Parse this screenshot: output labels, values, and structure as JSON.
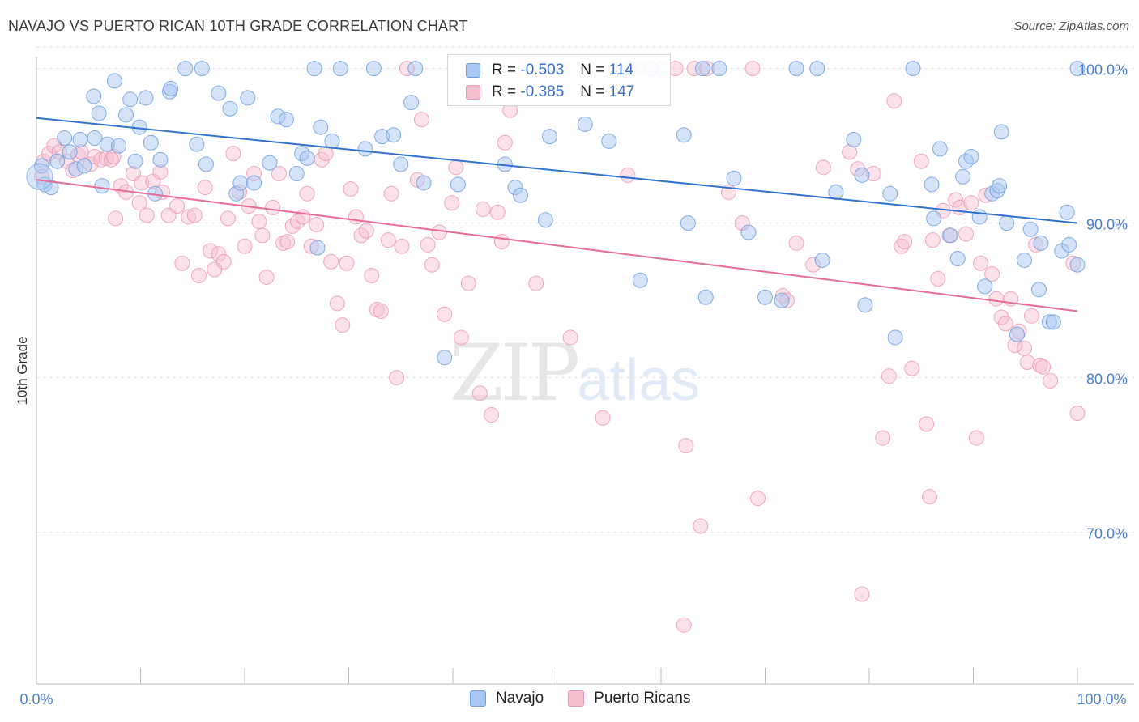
{
  "title": "NAVAJO VS PUERTO RICAN 10TH GRADE CORRELATION CHART",
  "source": "Source: ZipAtlas.com",
  "watermark": {
    "zip": "ZIP",
    "atlas": "atlas"
  },
  "colors": {
    "navajo_fill": "#a9c7f2",
    "navajo_stroke": "#6f9de0",
    "navajo_line": "#2f72d0",
    "pr_fill": "#f6bfd0",
    "pr_stroke": "#ee93b0",
    "pr_line": "#e86b96",
    "tick_label": "#4a7fd0",
    "grid": "#e2e2e2"
  },
  "legend": {
    "rows": [
      {
        "r_label": "R =",
        "r_value": "-0.503",
        "n_label": "N =",
        "n_value": "114"
      },
      {
        "r_label": "R =",
        "r_value": "-0.385",
        "n_label": "N =",
        "n_value": "147"
      }
    ],
    "bottom": [
      "Navajo",
      "Puerto Ricans"
    ]
  },
  "chart_data": {
    "type": "scatter",
    "xlabel": "",
    "ylabel": "10th Grade",
    "xlim": [
      0,
      100
    ],
    "ylim": [
      61.5,
      101.5
    ],
    "x_tick_labels": [
      "0.0%",
      "100.0%"
    ],
    "y_ticks": [
      70,
      80,
      90,
      100
    ],
    "y_tick_labels": [
      "70.0%",
      "80.0%",
      "90.0%",
      "100.0%"
    ],
    "grid": true,
    "series": [
      {
        "name": "Navajo",
        "trend": {
          "x": [
            0,
            100
          ],
          "y": [
            96.8,
            90.0
          ]
        },
        "points": [
          [
            0.5,
            93.7
          ],
          [
            0.8,
            92.5
          ],
          [
            1.4,
            92.3
          ],
          [
            2.0,
            94.0
          ],
          [
            2.7,
            95.5
          ],
          [
            3.2,
            94.6
          ],
          [
            3.8,
            93.5
          ],
          [
            4.2,
            95.4
          ],
          [
            4.6,
            93.7
          ],
          [
            5.5,
            98.2
          ],
          [
            5.6,
            95.5
          ],
          [
            6.0,
            97.1
          ],
          [
            6.3,
            92.4
          ],
          [
            6.8,
            95.1
          ],
          [
            7.5,
            99.2
          ],
          [
            7.9,
            95.0
          ],
          [
            8.6,
            97.0
          ],
          [
            9.0,
            98.0
          ],
          [
            9.5,
            94.0
          ],
          [
            9.9,
            96.2
          ],
          [
            10.5,
            98.1
          ],
          [
            11.0,
            95.2
          ],
          [
            11.4,
            91.9
          ],
          [
            11.9,
            94.1
          ],
          [
            12.8,
            98.5
          ],
          [
            12.9,
            98.7
          ],
          [
            14.3,
            100.0
          ],
          [
            15.4,
            95.1
          ],
          [
            15.9,
            100.0
          ],
          [
            16.3,
            93.8
          ],
          [
            17.5,
            98.4
          ],
          [
            18.6,
            97.4
          ],
          [
            19.2,
            91.9
          ],
          [
            19.6,
            92.6
          ],
          [
            20.3,
            98.1
          ],
          [
            20.9,
            92.6
          ],
          [
            22.4,
            93.9
          ],
          [
            23.2,
            96.9
          ],
          [
            24.0,
            96.7
          ],
          [
            25.0,
            93.2
          ],
          [
            25.5,
            94.5
          ],
          [
            26.0,
            94.2
          ],
          [
            26.7,
            100.0
          ],
          [
            27.0,
            88.4
          ],
          [
            27.3,
            96.2
          ],
          [
            28.4,
            95.3
          ],
          [
            29.2,
            100.0
          ],
          [
            31.6,
            94.8
          ],
          [
            32.4,
            100.0
          ],
          [
            33.2,
            95.6
          ],
          [
            34.3,
            95.7
          ],
          [
            35.0,
            93.8
          ],
          [
            36.0,
            97.8
          ],
          [
            36.4,
            100.0
          ],
          [
            37.2,
            92.6
          ],
          [
            39.2,
            81.3
          ],
          [
            40.5,
            92.5
          ],
          [
            45.0,
            93.8
          ],
          [
            46.0,
            92.3
          ],
          [
            46.5,
            91.8
          ],
          [
            48.9,
            90.2
          ],
          [
            49.3,
            95.6
          ],
          [
            52.7,
            96.4
          ],
          [
            55.0,
            95.3
          ],
          [
            57.0,
            100.0
          ],
          [
            58.0,
            86.3
          ],
          [
            60.0,
            100.0
          ],
          [
            62.2,
            95.7
          ],
          [
            62.6,
            90.0
          ],
          [
            64.3,
            85.2
          ],
          [
            65.6,
            100.0
          ],
          [
            67.0,
            92.9
          ],
          [
            68.4,
            89.4
          ],
          [
            70.0,
            85.2
          ],
          [
            71.6,
            85.0
          ],
          [
            75.5,
            87.6
          ],
          [
            76.8,
            92.0
          ],
          [
            78.5,
            95.4
          ],
          [
            79.3,
            93.1
          ],
          [
            79.6,
            84.7
          ],
          [
            82.0,
            91.9
          ],
          [
            82.5,
            82.6
          ],
          [
            86.0,
            92.5
          ],
          [
            86.2,
            90.3
          ],
          [
            86.8,
            94.8
          ],
          [
            87.8,
            89.2
          ],
          [
            88.5,
            87.7
          ],
          [
            89.0,
            93.0
          ],
          [
            89.3,
            94.0
          ],
          [
            89.8,
            94.3
          ],
          [
            90.6,
            90.4
          ],
          [
            91.1,
            85.9
          ],
          [
            91.8,
            91.9
          ],
          [
            92.3,
            92.1
          ],
          [
            92.5,
            92.4
          ],
          [
            92.7,
            95.9
          ],
          [
            93.2,
            90.0
          ],
          [
            94.2,
            82.8
          ],
          [
            94.9,
            87.6
          ],
          [
            95.5,
            89.6
          ],
          [
            96.3,
            85.7
          ],
          [
            96.5,
            88.7
          ],
          [
            97.3,
            83.6
          ],
          [
            97.7,
            83.6
          ],
          [
            98.5,
            88.2
          ],
          [
            99.0,
            90.7
          ],
          [
            99.2,
            88.6
          ],
          [
            100.0,
            87.3
          ],
          [
            100.0,
            100.0
          ],
          [
            73.0,
            100.0
          ],
          [
            75.0,
            100.0
          ],
          [
            84.2,
            100.0
          ],
          [
            64.0,
            100.0
          ],
          [
            59.0,
            100.0
          ],
          [
            49.0,
            100.0
          ],
          [
            50.5,
            100.0
          ]
        ]
      },
      {
        "name": "Puerto Ricans",
        "trend": {
          "x": [
            0,
            100
          ],
          "y": [
            92.8,
            84.3
          ]
        },
        "points": [
          [
            0.5,
            93.0
          ],
          [
            0.7,
            94.0
          ],
          [
            1.2,
            94.5
          ],
          [
            1.7,
            95.0
          ],
          [
            2.2,
            94.6
          ],
          [
            2.9,
            94.0
          ],
          [
            3.5,
            93.4
          ],
          [
            4.0,
            94.4
          ],
          [
            4.3,
            94.6
          ],
          [
            5.2,
            93.8
          ],
          [
            5.6,
            94.3
          ],
          [
            6.2,
            94.1
          ],
          [
            6.7,
            94.2
          ],
          [
            7.2,
            94.1
          ],
          [
            7.4,
            94.3
          ],
          [
            7.6,
            90.3
          ],
          [
            8.1,
            92.4
          ],
          [
            8.6,
            92.0
          ],
          [
            9.3,
            93.2
          ],
          [
            9.9,
            91.3
          ],
          [
            10.1,
            92.6
          ],
          [
            10.6,
            90.5
          ],
          [
            11.2,
            92.7
          ],
          [
            11.9,
            93.3
          ],
          [
            12.1,
            92.0
          ],
          [
            12.7,
            90.5
          ],
          [
            13.5,
            91.1
          ],
          [
            14.0,
            87.4
          ],
          [
            14.6,
            90.4
          ],
          [
            15.2,
            90.5
          ],
          [
            15.6,
            86.6
          ],
          [
            16.2,
            92.3
          ],
          [
            16.7,
            88.2
          ],
          [
            17.1,
            87.0
          ],
          [
            17.5,
            88.0
          ],
          [
            18.0,
            87.5
          ],
          [
            18.4,
            90.3
          ],
          [
            18.9,
            94.5
          ],
          [
            19.5,
            92.0
          ],
          [
            20.0,
            88.5
          ],
          [
            20.4,
            91.1
          ],
          [
            20.9,
            93.2
          ],
          [
            21.4,
            90.1
          ],
          [
            21.7,
            89.2
          ],
          [
            22.1,
            86.5
          ],
          [
            22.7,
            91.0
          ],
          [
            23.3,
            93.2
          ],
          [
            23.7,
            88.7
          ],
          [
            24.1,
            88.8
          ],
          [
            24.6,
            89.8
          ],
          [
            25.1,
            90.1
          ],
          [
            25.6,
            90.4
          ],
          [
            26.0,
            91.9
          ],
          [
            26.4,
            88.5
          ],
          [
            26.9,
            89.9
          ],
          [
            27.4,
            94.1
          ],
          [
            27.8,
            94.5
          ],
          [
            28.3,
            87.5
          ],
          [
            28.9,
            84.8
          ],
          [
            29.4,
            83.4
          ],
          [
            29.8,
            87.4
          ],
          [
            30.2,
            92.2
          ],
          [
            30.7,
            90.4
          ],
          [
            31.2,
            89.2
          ],
          [
            31.7,
            89.5
          ],
          [
            32.2,
            86.6
          ],
          [
            32.7,
            84.4
          ],
          [
            33.1,
            84.3
          ],
          [
            33.8,
            88.9
          ],
          [
            34.1,
            91.9
          ],
          [
            34.6,
            80.0
          ],
          [
            35.1,
            88.5
          ],
          [
            35.6,
            100.0
          ],
          [
            36.6,
            92.8
          ],
          [
            37.0,
            96.7
          ],
          [
            37.6,
            88.6
          ],
          [
            38.0,
            87.3
          ],
          [
            38.7,
            89.4
          ],
          [
            39.2,
            84.1
          ],
          [
            39.9,
            91.3
          ],
          [
            40.3,
            93.6
          ],
          [
            40.8,
            82.6
          ],
          [
            41.5,
            86.1
          ],
          [
            42.6,
            79.0
          ],
          [
            42.9,
            90.9
          ],
          [
            43.7,
            77.6
          ],
          [
            44.3,
            90.7
          ],
          [
            44.7,
            88.8
          ],
          [
            45.0,
            95.2
          ],
          [
            45.5,
            97.3
          ],
          [
            46.5,
            100.0
          ],
          [
            48.0,
            86.1
          ],
          [
            48.5,
            100.0
          ],
          [
            51.3,
            82.6
          ],
          [
            52.7,
            100.0
          ],
          [
            54.4,
            77.4
          ],
          [
            55.6,
            100.0
          ],
          [
            56.8,
            93.1
          ],
          [
            57.3,
            100.0
          ],
          [
            58.3,
            100.0
          ],
          [
            61.4,
            100.0
          ],
          [
            62.4,
            75.6
          ],
          [
            63.2,
            100.0
          ],
          [
            63.8,
            70.4
          ],
          [
            64.4,
            100.0
          ],
          [
            66.5,
            92.0
          ],
          [
            67.8,
            90.0
          ],
          [
            68.8,
            100.0
          ],
          [
            69.3,
            72.2
          ],
          [
            71.7,
            85.3
          ],
          [
            72.1,
            85.0
          ],
          [
            73.0,
            88.7
          ],
          [
            74.6,
            87.3
          ],
          [
            75.6,
            93.6
          ],
          [
            78.1,
            94.6
          ],
          [
            78.9,
            93.5
          ],
          [
            79.3,
            66.0
          ],
          [
            80.4,
            93.2
          ],
          [
            81.3,
            76.1
          ],
          [
            81.9,
            80.1
          ],
          [
            82.4,
            97.9
          ],
          [
            83.1,
            88.5
          ],
          [
            83.4,
            88.8
          ],
          [
            84.1,
            80.6
          ],
          [
            85.0,
            94.0
          ],
          [
            85.5,
            77.0
          ],
          [
            85.8,
            72.3
          ],
          [
            86.1,
            88.9
          ],
          [
            86.6,
            86.4
          ],
          [
            87.1,
            90.8
          ],
          [
            87.7,
            89.2
          ],
          [
            88.3,
            91.5
          ],
          [
            88.7,
            91.0
          ],
          [
            89.3,
            89.3
          ],
          [
            89.8,
            91.3
          ],
          [
            90.3,
            76.1
          ],
          [
            90.7,
            87.4
          ],
          [
            91.2,
            91.8
          ],
          [
            91.8,
            86.7
          ],
          [
            92.2,
            85.1
          ],
          [
            92.7,
            83.9
          ],
          [
            93.1,
            83.5
          ],
          [
            93.6,
            85.1
          ],
          [
            94.0,
            82.1
          ],
          [
            94.4,
            83.0
          ],
          [
            94.9,
            81.9
          ],
          [
            95.2,
            81.0
          ],
          [
            95.6,
            84.0
          ],
          [
            96.0,
            88.6
          ],
          [
            96.4,
            80.8
          ],
          [
            96.7,
            80.7
          ],
          [
            97.4,
            79.8
          ],
          [
            99.6,
            87.4
          ],
          [
            100.0,
            77.7
          ],
          [
            62.2,
            64.0
          ]
        ]
      }
    ]
  }
}
